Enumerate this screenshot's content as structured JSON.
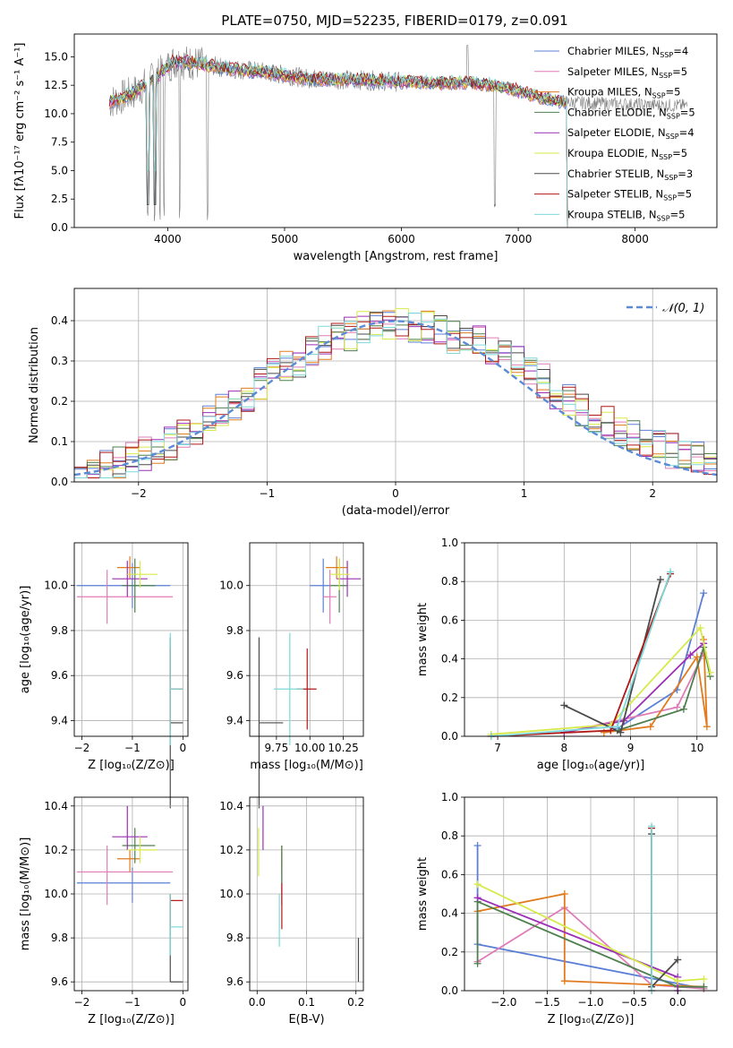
{
  "figure_title": "PLATE=0750, MJD=52235, FIBERID=0179, z=0.091",
  "colors": {
    "Chabrier MILES": "#5b7fd6",
    "Salpeter MILES": "#e07cb8",
    "Kroupa MILES": "#e07b1f",
    "Chabrier ELODIE": "#4f7f4f",
    "Salpeter ELODIE": "#9b2fb5",
    "Kroupa ELODIE": "#d7ea4a",
    "Chabrier STELIB": "#4a4a4a",
    "Salpeter STELIB": "#b01717",
    "Kroupa STELIB": "#7ed9da",
    "normal_curve": "#5b8ad6",
    "spectrum_gray": "#7f7f7f"
  },
  "chart_data": [
    {
      "id": "spectrum",
      "type": "line",
      "title": "PLATE=0750, MJD=52235, FIBERID=0179, z=0.091",
      "xlabel": "wavelength [Angstrom, rest frame]",
      "ylabel": "Flux [fλ10⁻¹⁷ erg cm⁻² s⁻¹ A⁻¹]",
      "xlim": [
        3200,
        8700
      ],
      "ylim": [
        0,
        17
      ],
      "xticks": [
        "4000",
        "5000",
        "6000",
        "7000",
        "8000"
      ],
      "yticks": [
        "0.0",
        "2.5",
        "5.0",
        "7.5",
        "10.0",
        "12.5",
        "15.0"
      ],
      "grid": false,
      "legend_position": "top-right",
      "legend": [
        {
          "label": "Chabrier MILES, N",
          "sub": "SSP",
          "tail": "=4"
        },
        {
          "label": "Salpeter MILES, N",
          "sub": "SSP",
          "tail": "=5"
        },
        {
          "label": "Kroupa MILES, N",
          "sub": "SSP",
          "tail": "=5"
        },
        {
          "label": "Chabrier ELODIE, N",
          "sub": "SSP",
          "tail": "=5"
        },
        {
          "label": "Salpeter ELODIE, N",
          "sub": "SSP",
          "tail": "=4"
        },
        {
          "label": "Kroupa ELODIE, N",
          "sub": "SSP",
          "tail": "=5"
        },
        {
          "label": "Chabrier STELIB, N",
          "sub": "SSP",
          "tail": "=3"
        },
        {
          "label": "Salpeter STELIB, N",
          "sub": "SSP",
          "tail": "=5"
        },
        {
          "label": "Kroupa STELIB, N",
          "sub": "SSP",
          "tail": "=5"
        }
      ],
      "continuum": [
        [
          3500,
          11.0
        ],
        [
          3700,
          11.8
        ],
        [
          3900,
          13.2
        ],
        [
          4050,
          14.6
        ],
        [
          4200,
          14.5
        ],
        [
          4500,
          14.0
        ],
        [
          4800,
          13.7
        ],
        [
          5000,
          13.4
        ],
        [
          5200,
          13.1
        ],
        [
          5500,
          13.0
        ],
        [
          5800,
          12.9
        ],
        [
          6000,
          12.8
        ],
        [
          6300,
          12.7
        ],
        [
          6600,
          12.7
        ],
        [
          6900,
          12.3
        ],
        [
          7200,
          11.4
        ],
        [
          7420,
          11.0
        ],
        [
          7700,
          10.9
        ],
        [
          8000,
          10.8
        ],
        [
          8400,
          10.7
        ]
      ],
      "model_ranges": [
        3500,
        7420
      ],
      "absorption_lines": [
        3830,
        3889,
        3934,
        3969,
        4102,
        4340,
        6800
      ]
    },
    {
      "id": "residuals",
      "type": "line",
      "xlabel": "(data-model)/error",
      "ylabel": "Normed distribution",
      "xlim": [
        -2.5,
        2.5
      ],
      "ylim": [
        0,
        0.48
      ],
      "xticks": [
        "−2",
        "−1",
        "0",
        "1",
        "2"
      ],
      "yticks": [
        "0.0",
        "0.1",
        "0.2",
        "0.3",
        "0.4"
      ],
      "grid": true,
      "legend_position": "top-right",
      "legend": [
        "𝒩(0, 1)"
      ]
    },
    {
      "id": "age_vs_Z",
      "type": "scatter",
      "xlabel": "Z [log₁₀(Z/Z⊙)]",
      "ylabel": "age  [log₁₀(age/yr)]",
      "xlim": [
        -2.15,
        0.1
      ],
      "ylim": [
        9.33,
        10.19
      ],
      "xticks": [
        "−2",
        "−1",
        "0"
      ],
      "yticks": [
        "9.4",
        "9.6",
        "9.8",
        "10.0"
      ],
      "grid": true
    },
    {
      "id": "age_vs_mass",
      "type": "scatter",
      "xlabel": "mass [log₁₀(M/M⊙)]",
      "xlim": [
        9.55,
        10.4
      ],
      "ylim": [
        9.33,
        10.19
      ],
      "xticks": [
        "9.75",
        "10.00",
        "10.25"
      ],
      "yticks": [
        "9.4",
        "9.6",
        "9.8",
        "10.0"
      ],
      "grid": true
    },
    {
      "id": "weight_vs_age",
      "type": "line",
      "xlabel": "age  [log₁₀(age/yr)]",
      "ylabel": "mass weight",
      "xlim": [
        6.5,
        10.3
      ],
      "ylim": [
        0,
        1.0
      ],
      "xticks": [
        "7",
        "8",
        "9",
        "10"
      ],
      "yticks": [
        "0.0",
        "0.2",
        "0.4",
        "0.6",
        "0.8",
        "1.0"
      ],
      "grid": true,
      "series": [
        {
          "model": "Chabrier MILES",
          "x": [
            8.8,
            9.7,
            10.1
          ],
          "y": [
            0.04,
            0.24,
            0.74
          ]
        },
        {
          "model": "Salpeter MILES",
          "x": [
            8.0,
            9.7,
            10.1
          ],
          "y": [
            0.02,
            0.15,
            0.43
          ]
        },
        {
          "model": "Kroupa MILES",
          "x": [
            8.6,
            9.3,
            10.0,
            10.15,
            10.1
          ],
          "y": [
            0.02,
            0.05,
            0.41,
            0.05,
            0.5
          ]
        },
        {
          "model": "Chabrier ELODIE",
          "x": [
            8.8,
            9.8,
            10.1,
            10.2
          ],
          "y": [
            0.03,
            0.14,
            0.46,
            0.31
          ]
        },
        {
          "model": "Salpeter ELODIE",
          "x": [
            8.0,
            8.9,
            9.9,
            10.1
          ],
          "y": [
            0.02,
            0.08,
            0.42,
            0.48
          ]
        },
        {
          "model": "Kroupa ELODIE",
          "x": [
            6.9,
            8.7,
            10.05,
            10.2
          ],
          "y": [
            0.01,
            0.06,
            0.56,
            0.33
          ]
        },
        {
          "model": "Chabrier STELIB",
          "x": [
            8.0,
            8.85,
            9.45
          ],
          "y": [
            0.16,
            0.02,
            0.81
          ]
        },
        {
          "model": "Salpeter STELIB",
          "x": [
            6.9,
            8.7,
            9.6
          ],
          "y": [
            0.0,
            0.03,
            0.84
          ]
        },
        {
          "model": "Kroupa STELIB",
          "x": [
            6.9,
            8.8,
            9.6
          ],
          "y": [
            0.0,
            0.05,
            0.85
          ]
        }
      ]
    },
    {
      "id": "mass_vs_Z",
      "type": "scatter",
      "xlabel": "Z [log₁₀(Z/Z⊙)]",
      "ylabel": "mass [log₁₀(M/M⊙)]",
      "xlim": [
        -2.15,
        0.1
      ],
      "ylim": [
        9.56,
        10.44
      ],
      "xticks": [
        "−2",
        "−1",
        "0"
      ],
      "yticks": [
        "9.6",
        "9.8",
        "10.0",
        "10.2",
        "10.4"
      ],
      "grid": true
    },
    {
      "id": "mass_vs_ebv",
      "type": "scatter",
      "xlabel": "E(B-V)",
      "xlim": [
        -0.015,
        0.215
      ],
      "ylim": [
        9.56,
        10.44
      ],
      "xticks": [
        "0.0",
        "0.1",
        "0.2"
      ],
      "yticks": [
        "9.6",
        "9.8",
        "10.0",
        "10.2",
        "10.4"
      ],
      "grid": true
    },
    {
      "id": "weight_vs_Z",
      "type": "line",
      "xlabel": "Z [log₁₀(Z/Z⊙)]",
      "ylabel": "mass weight",
      "xlim": [
        -2.45,
        0.45
      ],
      "ylim": [
        0,
        1.0
      ],
      "xticks": [
        "−2.0",
        "−1.5",
        "−1.0",
        "−0.5",
        "0.0"
      ],
      "yticks": [
        "0.0",
        "0.2",
        "0.4",
        "0.6",
        "0.8",
        "1.0"
      ],
      "grid": true,
      "series": [
        {
          "model": "Chabrier MILES",
          "x": [
            -2.3,
            -2.3,
            0.3
          ],
          "y": [
            0.75,
            0.24,
            0.01
          ]
        },
        {
          "model": "Salpeter MILES",
          "x": [
            -2.3,
            -1.3,
            -0.3,
            0.3
          ],
          "y": [
            0.15,
            0.43,
            0.03,
            0.01
          ]
        },
        {
          "model": "Kroupa MILES",
          "x": [
            -2.3,
            -1.3,
            -1.3,
            0.3
          ],
          "y": [
            0.41,
            0.5,
            0.05,
            0.02
          ]
        },
        {
          "model": "Chabrier ELODIE",
          "x": [
            -2.3,
            -2.3,
            0.0,
            0.3
          ],
          "y": [
            0.14,
            0.46,
            0.02,
            0.02
          ]
        },
        {
          "model": "Salpeter ELODIE",
          "x": [
            -2.3,
            0.0,
            0.0
          ],
          "y": [
            0.48,
            0.07,
            0.0
          ]
        },
        {
          "model": "Kroupa ELODIE",
          "x": [
            -2.3,
            0.0,
            0.3
          ],
          "y": [
            0.55,
            0.05,
            0.06
          ]
        },
        {
          "model": "Chabrier STELIB",
          "x": [
            -0.3,
            -0.3,
            0.0
          ],
          "y": [
            0.81,
            0.02,
            0.16
          ]
        },
        {
          "model": "Salpeter STELIB",
          "x": [
            -0.3,
            -0.3
          ],
          "y": [
            0.84,
            0.0
          ]
        },
        {
          "model": "Kroupa STELIB",
          "x": [
            -0.3,
            -0.3
          ],
          "y": [
            0.85,
            0.0
          ]
        }
      ]
    }
  ],
  "scatter_points": [
    {
      "model": "Chabrier MILES",
      "Z": -1.0,
      "Zlo": -2.1,
      "Zhi": -0.25,
      "age": 10.0,
      "ageErr": 0.1,
      "mass": 10.05,
      "massLo": 9.96,
      "massHi": 10.12,
      "ebv": 0.05,
      "ebvMass": 10.05,
      "ebvMassLo": 9.95,
      "ebvMassHi": 10.22
    },
    {
      "model": "Salpeter MILES",
      "Z": -1.5,
      "Zlo": -2.1,
      "Zhi": -0.2,
      "age": 9.95,
      "ageErr": 0.12,
      "mass": 10.1,
      "massLo": 9.95,
      "massHi": 10.22,
      "ebv": 0.05,
      "ebvMass": 10.1,
      "ebvMassLo": 9.95,
      "ebvMassHi": 10.22
    },
    {
      "model": "Kroupa MILES",
      "Z": -1.05,
      "Zlo": -1.3,
      "Zhi": -0.85,
      "age": 10.08,
      "ageErr": 0.05,
      "mass": 10.16,
      "massLo": 10.1,
      "massHi": 10.2,
      "ebv": 0.05,
      "ebvMass": 10.16,
      "ebvMassLo": 10.1,
      "ebvMassHi": 10.22
    },
    {
      "model": "Chabrier ELODIE",
      "Z": -0.95,
      "Zlo": -1.2,
      "Zhi": -0.55,
      "age": 10.0,
      "ageErr": 0.12,
      "mass": 10.22,
      "massLo": 10.14,
      "massHi": 10.3,
      "ebv": 0.05,
      "ebvMass": 10.2,
      "ebvMassLo": 10.05,
      "ebvMassHi": 10.22
    },
    {
      "model": "Salpeter ELODIE",
      "Z": -1.1,
      "Zlo": -1.4,
      "Zhi": -0.7,
      "age": 10.03,
      "ageErr": 0.08,
      "mass": 10.26,
      "massLo": 10.2,
      "massHi": 10.4,
      "ebv": 0.012,
      "ebvMass": 10.3,
      "ebvMassLo": 10.2,
      "ebvMassHi": 10.4
    },
    {
      "model": "Kroupa ELODIE",
      "Z": -0.85,
      "Zlo": -1.1,
      "Zhi": -0.5,
      "age": 10.05,
      "ageErr": 0.06,
      "mass": 10.2,
      "massLo": 10.14,
      "massHi": 10.26,
      "ebv": 0.003,
      "ebvMass": 10.2,
      "ebvMassLo": 10.08,
      "ebvMassHi": 10.3
    },
    {
      "model": "Chabrier STELIB",
      "Z": -0.25,
      "Zlo": -0.25,
      "Zhi": 0.0,
      "age": 9.39,
      "ageErr": 0.38,
      "mass": 9.6,
      "massLo": 9.6,
      "massHi": 10.0,
      "ebv": 0.205,
      "ebvMass": 9.6,
      "ebvMassLo": 9.6,
      "ebvMassHi": 9.8
    },
    {
      "model": "Salpeter STELIB",
      "Z": -0.25,
      "Zlo": -0.25,
      "Zhi": 0.0,
      "age": 9.54,
      "ageErr": 0.18,
      "mass": 9.97,
      "massLo": 9.84,
      "massHi": 10.0,
      "ebv": 0.05,
      "ebvMass": 9.97,
      "ebvMassLo": 9.84,
      "ebvMassHi": 10.05
    },
    {
      "model": "Kroupa STELIB",
      "Z": -0.25,
      "Zlo": -0.25,
      "Zhi": 0.0,
      "age": 9.54,
      "ageErr": 0.25,
      "mass": 9.85,
      "massLo": 9.72,
      "massHi": 10.0,
      "ebv": 0.045,
      "ebvMass": 9.85,
      "ebvMassLo": 9.76,
      "ebvMassHi": 10.0
    }
  ],
  "age_mass_points": [
    {
      "model": "Chabrier MILES",
      "mass": 10.1,
      "massLo": 10.0,
      "massHi": 10.15,
      "age": 10.0,
      "ageErr": 0.12
    },
    {
      "model": "Salpeter MILES",
      "mass": 10.15,
      "massLo": 10.1,
      "massHi": 10.2,
      "age": 9.95,
      "ageErr": 0.12
    },
    {
      "model": "Kroupa MILES",
      "mass": 10.2,
      "massLo": 10.12,
      "massHi": 10.28,
      "age": 10.08,
      "ageErr": 0.05
    },
    {
      "model": "Chabrier ELODIE",
      "mass": 10.22,
      "massLo": 10.15,
      "massHi": 10.28,
      "age": 10.0,
      "ageErr": 0.12
    },
    {
      "model": "Salpeter ELODIE",
      "mass": 10.28,
      "massLo": 10.2,
      "massHi": 10.38,
      "age": 10.03,
      "ageErr": 0.08
    },
    {
      "model": "Kroupa ELODIE",
      "mass": 10.22,
      "massLo": 10.15,
      "massHi": 10.3,
      "age": 10.05,
      "ageErr": 0.07
    },
    {
      "model": "Chabrier STELIB",
      "mass": 9.62,
      "massLo": 9.62,
      "massHi": 9.8,
      "age": 9.39,
      "ageErr": 0.38
    },
    {
      "model": "Salpeter STELIB",
      "mass": 9.98,
      "massLo": 9.9,
      "massHi": 10.05,
      "age": 9.54,
      "ageErr": 0.18
    },
    {
      "model": "Kroupa STELIB",
      "mass": 9.85,
      "massLo": 9.73,
      "massHi": 9.95,
      "age": 9.54,
      "ageErr": 0.25
    }
  ]
}
